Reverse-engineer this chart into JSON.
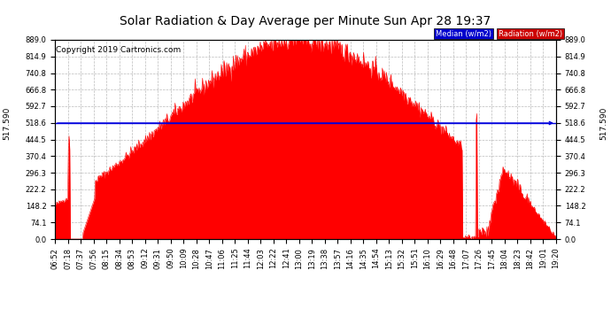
{
  "title": "Solar Radiation & Day Average per Minute Sun Apr 28 19:37",
  "copyright": "Copyright 2019 Cartronics.com",
  "median_value": 517.59,
  "median_label": "517.590",
  "y_ticks": [
    0.0,
    74.1,
    148.2,
    222.2,
    296.3,
    370.4,
    444.5,
    518.6,
    592.7,
    666.8,
    740.8,
    814.9,
    889.0
  ],
  "y_max": 889.0,
  "y_min": 0.0,
  "background_color": "#ffffff",
  "plot_bg_color": "#ffffff",
  "grid_color": "#aaaaaa",
  "fill_color": "#ff0000",
  "median_line_color": "#0000dd",
  "legend_median_color": "#0000cc",
  "legend_radiation_color": "#cc0000",
  "title_fontsize": 10,
  "tick_fontsize": 6,
  "copyright_fontsize": 6.5,
  "time_labels": [
    "06:52",
    "07:18",
    "07:37",
    "07:56",
    "08:15",
    "08:34",
    "08:53",
    "09:12",
    "09:31",
    "09:50",
    "10:09",
    "10:28",
    "10:47",
    "11:06",
    "11:25",
    "11:44",
    "12:03",
    "12:22",
    "12:41",
    "13:00",
    "13:19",
    "13:38",
    "13:57",
    "14:16",
    "14:35",
    "14:54",
    "15:13",
    "15:32",
    "15:51",
    "16:10",
    "16:29",
    "16:48",
    "17:07",
    "17:26",
    "17:45",
    "18:04",
    "18:23",
    "18:42",
    "19:01",
    "19:20"
  ]
}
